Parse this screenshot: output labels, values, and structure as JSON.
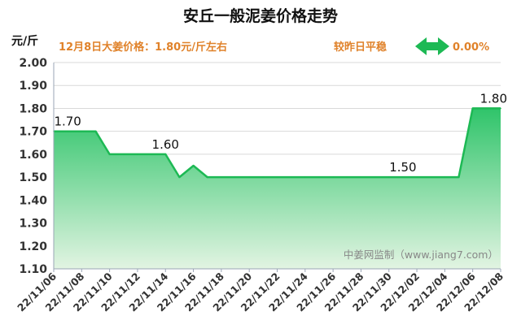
{
  "chart_data": {
    "type": "area",
    "title": "安丘一般泥姜价格走势",
    "ylabel": "元/斤",
    "ylim": [
      1.1,
      2.0
    ],
    "y_ticks": [
      "1.10",
      "1.20",
      "1.30",
      "1.40",
      "1.50",
      "1.60",
      "1.70",
      "1.80",
      "1.90",
      "2.00"
    ],
    "x_ticks": [
      "22/11/06",
      "22/11/08",
      "22/11/10",
      "22/11/12",
      "22/11/14",
      "22/11/16",
      "22/11/18",
      "22/11/20",
      "22/11/22",
      "22/11/24",
      "22/11/26",
      "22/11/28",
      "22/11/30",
      "22/12/02",
      "22/12/04",
      "22/12/06",
      "22/12/08"
    ],
    "x": [
      "22/11/06",
      "22/11/07",
      "22/11/08",
      "22/11/09",
      "22/11/10",
      "22/11/11",
      "22/11/12",
      "22/11/13",
      "22/11/14",
      "22/11/15",
      "22/11/16",
      "22/11/17",
      "22/11/18",
      "22/11/19",
      "22/11/20",
      "22/11/21",
      "22/11/22",
      "22/11/23",
      "22/11/24",
      "22/11/25",
      "22/11/26",
      "22/11/27",
      "22/11/28",
      "22/11/29",
      "22/11/30",
      "22/12/01",
      "22/12/02",
      "22/12/03",
      "22/12/04",
      "22/12/05",
      "22/12/06",
      "22/12/07",
      "22/12/08"
    ],
    "values": [
      1.7,
      1.7,
      1.7,
      1.7,
      1.6,
      1.6,
      1.6,
      1.6,
      1.6,
      1.5,
      1.55,
      1.5,
      1.5,
      1.5,
      1.5,
      1.5,
      1.5,
      1.5,
      1.5,
      1.5,
      1.5,
      1.5,
      1.5,
      1.5,
      1.5,
      1.5,
      1.5,
      1.5,
      1.5,
      1.5,
      1.8,
      1.8,
      1.8
    ],
    "data_labels": [
      {
        "x": "22/11/07",
        "text": "1.70"
      },
      {
        "x": "22/11/14",
        "text": "1.60"
      },
      {
        "x": "22/12/01",
        "text": "1.50"
      },
      {
        "x": "22/12/08",
        "text": "1.80"
      }
    ],
    "grid": true,
    "line_color": "#1db954",
    "fill_color_top": "#2fc46a",
    "fill_color_bottom": "#e2f4e2"
  },
  "info": {
    "price_text": "12月8日大姜价格：1.80元/斤左右",
    "compare_text": "较昨日平稳",
    "change_text": "0.00%",
    "accent_color": "#e0822a",
    "arrow_color": "#1db954",
    "arrow_icon": "double-arrow-icon"
  },
  "watermark": "中姜网监制（www.jiang7.com）"
}
